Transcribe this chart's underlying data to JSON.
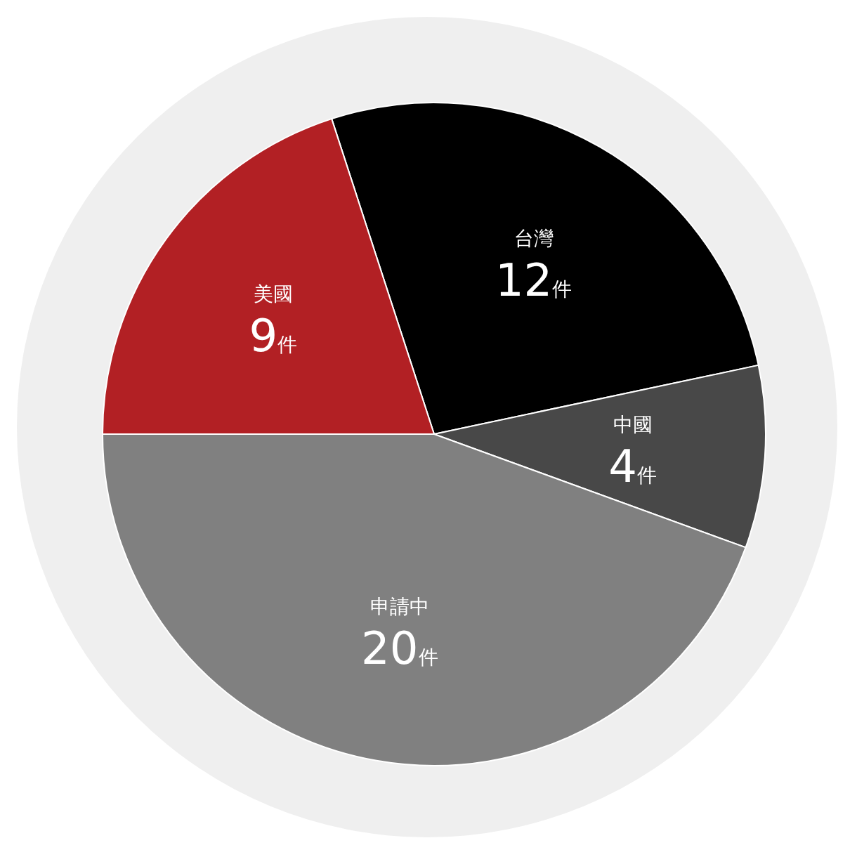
{
  "chart_data": {
    "type": "pie",
    "categories": [
      "台灣",
      "中國",
      "申請中",
      "美國"
    ],
    "values": [
      12,
      4,
      20,
      9
    ],
    "colors": [
      "#000000",
      "#484848",
      "#808080",
      "#b22024"
    ],
    "value_labels": [
      "12件",
      "4件",
      "20件",
      "9件"
    ],
    "legend": false
  }
}
